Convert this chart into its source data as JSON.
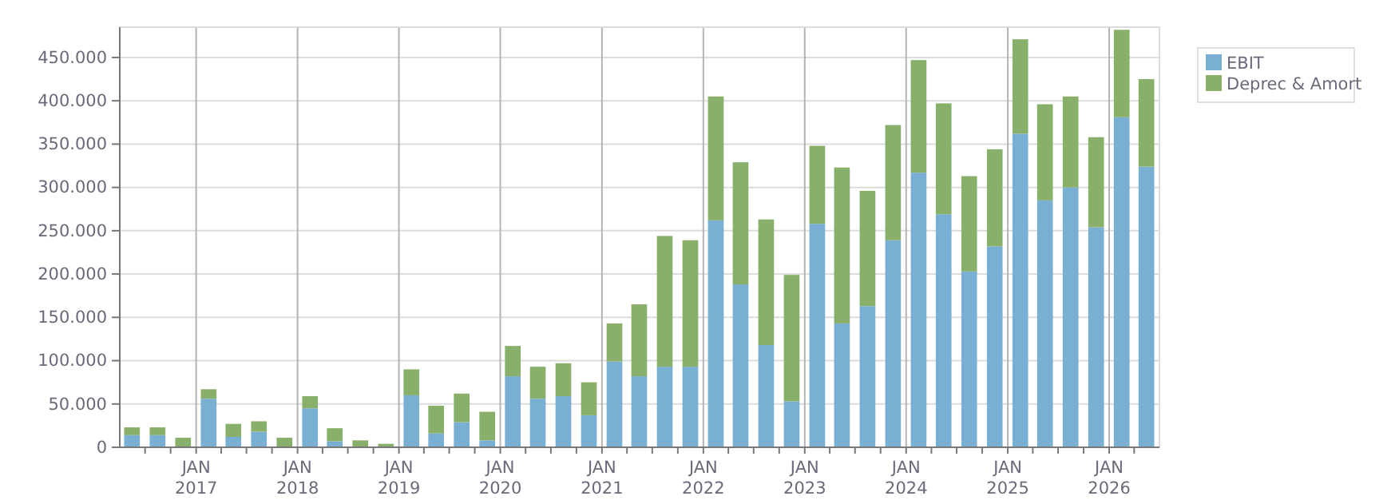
{
  "chart_data": {
    "type": "bar",
    "stacked": true,
    "x": [
      "2016-05-15",
      "2016-08-15",
      "2016-11-15",
      "2017-02-15",
      "2017-05-15",
      "2017-08-15",
      "2017-11-15",
      "2018-02-15",
      "2018-05-15",
      "2018-08-15",
      "2018-11-15",
      "2019-02-15",
      "2019-05-15",
      "2019-08-15",
      "2019-11-15",
      "2020-02-15",
      "2020-05-15",
      "2020-08-15",
      "2020-11-15",
      "2021-02-15",
      "2021-05-15",
      "2021-08-15",
      "2021-11-15",
      "2022-02-15",
      "2022-05-15",
      "2022-08-15",
      "2022-11-15",
      "2023-02-15",
      "2023-05-15",
      "2023-08-15",
      "2023-11-15",
      "2024-02-15",
      "2024-05-15",
      "2024-08-15",
      "2024-11-15",
      "2025-02-15",
      "2025-05-15",
      "2025-08-15",
      "2025-11-15",
      "2026-02-15",
      "2026-05-15"
    ],
    "series": [
      {
        "name": "EBIT",
        "color": "#78afd2",
        "values": [
          14000,
          14000,
          0,
          56000,
          12000,
          18000,
          0,
          45000,
          7000,
          0,
          0,
          60000,
          16000,
          29000,
          8000,
          82000,
          56000,
          59000,
          37000,
          99000,
          82000,
          93000,
          93000,
          262000,
          188000,
          118000,
          53000,
          258000,
          143000,
          163000,
          239000,
          317000,
          269000,
          203000,
          232000,
          362000,
          285000,
          300000,
          254000,
          381000,
          324000
        ]
      },
      {
        "name": "Deprec & Amort",
        "color": "#89b06b",
        "values": [
          9000,
          9000,
          11000,
          11000,
          15000,
          12000,
          11000,
          14000,
          15000,
          8000,
          4000,
          30000,
          32000,
          33000,
          33000,
          35000,
          37000,
          38000,
          38000,
          44000,
          83000,
          151000,
          146000,
          143000,
          141000,
          145000,
          146000,
          90000,
          180000,
          133000,
          133000,
          130000,
          128000,
          110000,
          112000,
          109000,
          111000,
          105000,
          104000,
          101000,
          101000
        ]
      }
    ],
    "xlim": [
      "2016-04",
      "2026-07"
    ],
    "xticks": [
      {
        "value": "2016-07",
        "label": null
      },
      {
        "value": "2016-10",
        "label": null
      },
      {
        "value": "2017-01",
        "label": "JAN 2017"
      },
      {
        "value": "2017-04",
        "label": null
      },
      {
        "value": "2017-07",
        "label": null
      },
      {
        "value": "2017-10",
        "label": null
      },
      {
        "value": "2018-01",
        "label": "JAN 2018"
      },
      {
        "value": "2018-04",
        "label": null
      },
      {
        "value": "2018-07",
        "label": null
      },
      {
        "value": "2018-10",
        "label": null
      },
      {
        "value": "2019-01",
        "label": "JAN 2019"
      },
      {
        "value": "2019-04",
        "label": null
      },
      {
        "value": "2019-07",
        "label": null
      },
      {
        "value": "2019-10",
        "label": null
      },
      {
        "value": "2020-01",
        "label": "JAN 2020"
      },
      {
        "value": "2020-04",
        "label": null
      },
      {
        "value": "2020-07",
        "label": null
      },
      {
        "value": "2020-10",
        "label": null
      },
      {
        "value": "2021-01",
        "label": "JAN 2021"
      },
      {
        "value": "2021-04",
        "label": null
      },
      {
        "value": "2021-07",
        "label": null
      },
      {
        "value": "2021-10",
        "label": null
      },
      {
        "value": "2022-01",
        "label": "JAN 2022"
      },
      {
        "value": "2022-04",
        "label": null
      },
      {
        "value": "2022-07",
        "label": null
      },
      {
        "value": "2022-10",
        "label": null
      },
      {
        "value": "2023-01",
        "label": "JAN 2023"
      },
      {
        "value": "2023-04",
        "label": null
      },
      {
        "value": "2023-07",
        "label": null
      },
      {
        "value": "2023-10",
        "label": null
      },
      {
        "value": "2024-01",
        "label": "JAN 2024"
      },
      {
        "value": "2024-04",
        "label": null
      },
      {
        "value": "2024-07",
        "label": null
      },
      {
        "value": "2024-10",
        "label": null
      },
      {
        "value": "2025-01",
        "label": "JAN 2025"
      },
      {
        "value": "2025-04",
        "label": null
      },
      {
        "value": "2025-07",
        "label": null
      },
      {
        "value": "2025-10",
        "label": null
      },
      {
        "value": "2026-01",
        "label": "JAN 2026"
      },
      {
        "value": "2026-04",
        "label": null
      }
    ],
    "ylim": [
      0,
      485000
    ],
    "yticks": [
      0,
      {
        "value": 50000,
        "label": "50.000"
      },
      {
        "value": 100000,
        "label": "100.000"
      },
      {
        "value": 150000,
        "label": "150.000"
      },
      {
        "value": 200000,
        "label": "200.000"
      },
      {
        "value": 250000,
        "label": "250.000"
      },
      {
        "value": 300000,
        "label": "300.000"
      },
      {
        "value": 350000,
        "label": "350.000"
      },
      {
        "value": 400000,
        "label": "400.000"
      },
      {
        "value": 450000,
        "label": "450.000"
      }
    ],
    "grid": true,
    "legend": "top right"
  }
}
